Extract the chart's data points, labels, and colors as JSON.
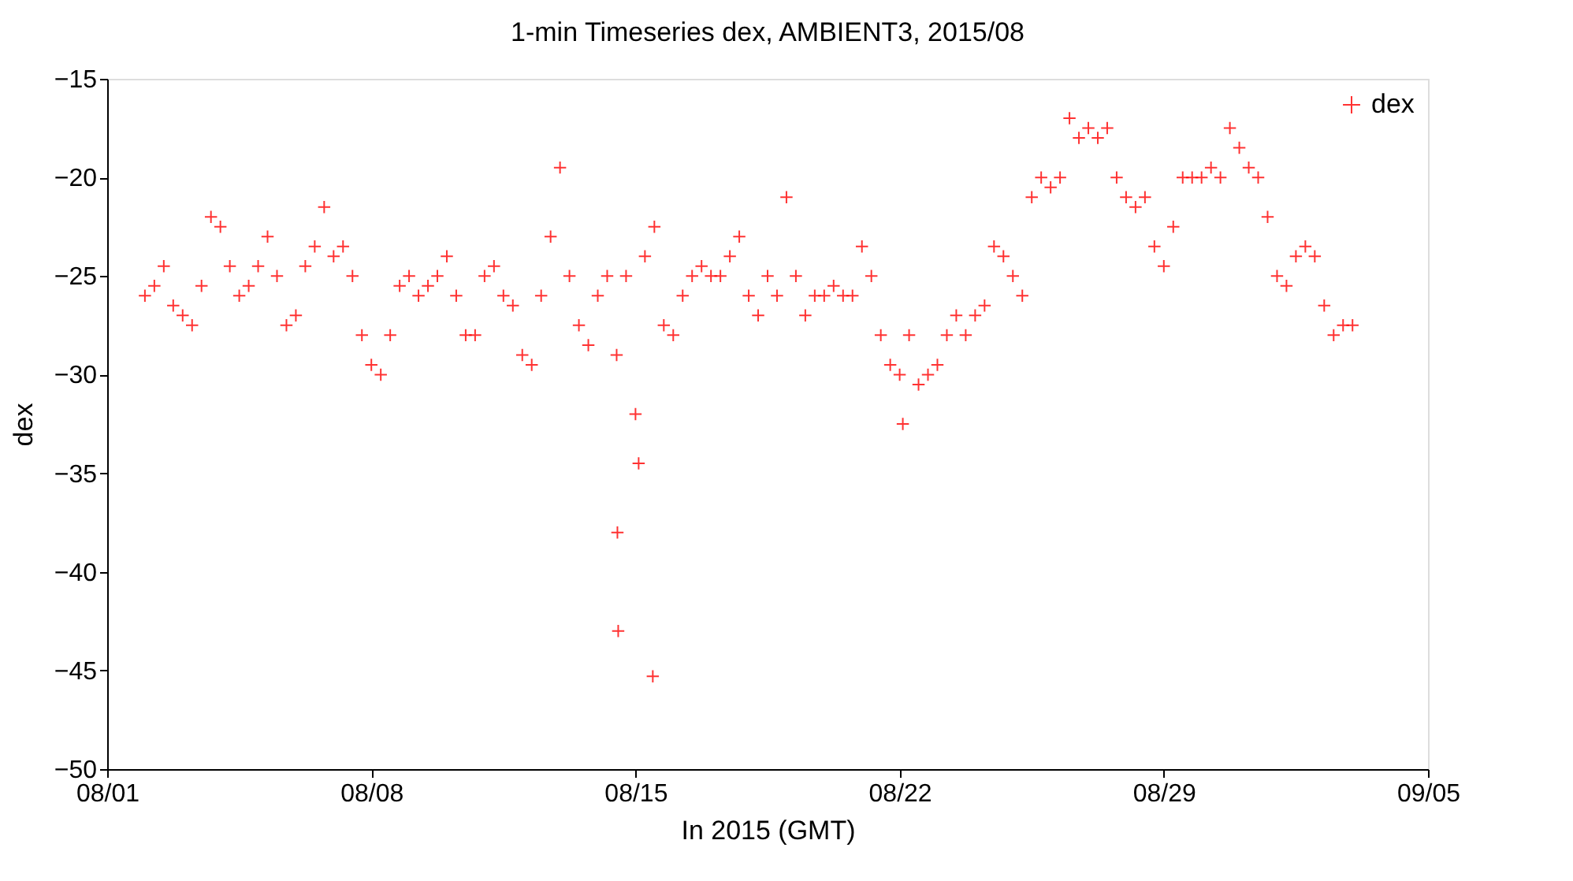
{
  "chart_data": {
    "type": "scatter",
    "title": "1-min Timeseries dex, AMBIENT3, 2015/08",
    "xlabel": "In 2015 (GMT)",
    "ylabel": "dex",
    "xlim": [
      "2015-08-01",
      "2015-09-05"
    ],
    "xticks": [
      {
        "value": "2015-08-01",
        "label": "08/01"
      },
      {
        "value": "2015-08-08",
        "label": "08/08"
      },
      {
        "value": "2015-08-15",
        "label": "08/15"
      },
      {
        "value": "2015-08-22",
        "label": "08/22"
      },
      {
        "value": "2015-08-29",
        "label": "08/29"
      },
      {
        "value": "2015-09-05",
        "label": "09/05"
      }
    ],
    "ylim": [
      -50,
      -15
    ],
    "yticks": [
      -50,
      -45,
      -40,
      -35,
      -30,
      -25,
      -20,
      -15
    ],
    "grid": false,
    "legend": "top right",
    "marker": "cross",
    "series": [
      {
        "name": "dex",
        "color": "#ff0000",
        "x": [
          "2015-08-02T00:00",
          "2015-08-02T06:00",
          "2015-08-02T12:00",
          "2015-08-02T18:00",
          "2015-08-03T00:00",
          "2015-08-03T06:00",
          "2015-08-03T12:00",
          "2015-08-03T18:00",
          "2015-08-04T00:00",
          "2015-08-04T06:00",
          "2015-08-04T12:00",
          "2015-08-04T18:00",
          "2015-08-05T00:00",
          "2015-08-05T06:00",
          "2015-08-05T12:00",
          "2015-08-05T18:00",
          "2015-08-06T00:00",
          "2015-08-06T06:00",
          "2015-08-06T12:00",
          "2015-08-06T18:00",
          "2015-08-07T00:00",
          "2015-08-07T06:00",
          "2015-08-07T12:00",
          "2015-08-07T18:00",
          "2015-08-08T00:00",
          "2015-08-08T06:00",
          "2015-08-08T12:00",
          "2015-08-08T18:00",
          "2015-08-09T00:00",
          "2015-08-09T06:00",
          "2015-08-09T12:00",
          "2015-08-09T18:00",
          "2015-08-10T00:00",
          "2015-08-10T06:00",
          "2015-08-10T12:00",
          "2015-08-10T18:00",
          "2015-08-11T00:00",
          "2015-08-11T06:00",
          "2015-08-11T12:00",
          "2015-08-11T18:00",
          "2015-08-12T00:00",
          "2015-08-12T06:00",
          "2015-08-12T12:00",
          "2015-08-12T18:00",
          "2015-08-13T00:00",
          "2015-08-13T06:00",
          "2015-08-13T12:00",
          "2015-08-13T18:00",
          "2015-08-14T00:00",
          "2015-08-14T06:00",
          "2015-08-14T12:00",
          "2015-08-14T12:30",
          "2015-08-14T13:00",
          "2015-08-14T18:00",
          "2015-08-15T00:00",
          "2015-08-15T02:00",
          "2015-08-15T06:00",
          "2015-08-15T11:00",
          "2015-08-15T12:00",
          "2015-08-15T18:00",
          "2015-08-16T00:00",
          "2015-08-16T06:00",
          "2015-08-16T12:00",
          "2015-08-16T18:00",
          "2015-08-17T00:00",
          "2015-08-17T06:00",
          "2015-08-17T12:00",
          "2015-08-17T18:00",
          "2015-08-18T00:00",
          "2015-08-18T06:00",
          "2015-08-18T12:00",
          "2015-08-18T18:00",
          "2015-08-19T00:00",
          "2015-08-19T06:00",
          "2015-08-19T12:00",
          "2015-08-19T18:00",
          "2015-08-20T00:00",
          "2015-08-20T06:00",
          "2015-08-20T12:00",
          "2015-08-20T18:00",
          "2015-08-21T00:00",
          "2015-08-21T06:00",
          "2015-08-21T12:00",
          "2015-08-21T18:00",
          "2015-08-22T00:00",
          "2015-08-22T02:00",
          "2015-08-22T06:00",
          "2015-08-22T12:00",
          "2015-08-22T18:00",
          "2015-08-23T00:00",
          "2015-08-23T06:00",
          "2015-08-23T12:00",
          "2015-08-23T18:00",
          "2015-08-24T00:00",
          "2015-08-24T06:00",
          "2015-08-24T12:00",
          "2015-08-24T18:00",
          "2015-08-25T00:00",
          "2015-08-25T06:00",
          "2015-08-25T12:00",
          "2015-08-25T18:00",
          "2015-08-26T00:00",
          "2015-08-26T06:00",
          "2015-08-26T12:00",
          "2015-08-26T18:00",
          "2015-08-27T00:00",
          "2015-08-27T06:00",
          "2015-08-27T12:00",
          "2015-08-27T18:00",
          "2015-08-28T00:00",
          "2015-08-28T06:00",
          "2015-08-28T12:00",
          "2015-08-28T18:00",
          "2015-08-29T00:00",
          "2015-08-29T06:00",
          "2015-08-29T12:00",
          "2015-08-29T18:00",
          "2015-08-30T00:00",
          "2015-08-30T06:00",
          "2015-08-30T12:00",
          "2015-08-30T18:00",
          "2015-08-31T00:00",
          "2015-08-31T06:00",
          "2015-08-31T12:00",
          "2015-08-31T18:00",
          "2015-09-01T00:00",
          "2015-09-01T06:00",
          "2015-09-01T12:00",
          "2015-09-01T18:00",
          "2015-09-02T00:00",
          "2015-09-02T06:00",
          "2015-09-02T12:00",
          "2015-09-02T18:00",
          "2015-09-03T00:00"
        ],
        "values": [
          -26,
          -25.5,
          -24.5,
          -26.5,
          -27,
          -27.5,
          -25.5,
          -22,
          -22.5,
          -24.5,
          -26,
          -25.5,
          -24.5,
          -23,
          -25,
          -27.5,
          -27,
          -24.5,
          -23.5,
          -21.5,
          -24,
          -23.5,
          -25,
          -28,
          -29.5,
          -30,
          -28,
          -25.5,
          -25,
          -26,
          -25.5,
          -25,
          -24,
          -26,
          -28,
          -28,
          -25,
          -24.5,
          -26,
          -26.5,
          -29,
          -29.5,
          -26,
          -23,
          -19.5,
          -25,
          -27.5,
          -28.5,
          -26,
          -25,
          -29,
          -38,
          -43,
          -25,
          -32,
          -34.5,
          -24,
          -45.3,
          -22.5,
          -27.5,
          -28,
          -26,
          -25,
          -24.5,
          -25,
          -25,
          -24,
          -23,
          -26,
          -27,
          -25,
          -26,
          -21,
          -25,
          -27,
          -26,
          -26,
          -25.5,
          -26,
          -26,
          -23.5,
          -25,
          -28,
          -29.5,
          -30,
          -32.5,
          -28,
          -30.5,
          -30,
          -29.5,
          -28,
          -27,
          -28,
          -27,
          -26.5,
          -23.5,
          -24,
          -25,
          -26,
          -21,
          -20,
          -20.5,
          -20,
          -17,
          -18,
          -17.5,
          -18,
          -17.5,
          -20,
          -21,
          -21.5,
          -21,
          -23.5,
          -24.5,
          -22.5,
          -20,
          -20,
          -20,
          -19.5,
          -20,
          -17.5,
          -18.5,
          -19.5,
          -20,
          -22,
          -25,
          -25.5,
          -24,
          -23.5,
          -24,
          -26.5,
          -28,
          -27.5,
          -27.5
        ]
      }
    ]
  }
}
